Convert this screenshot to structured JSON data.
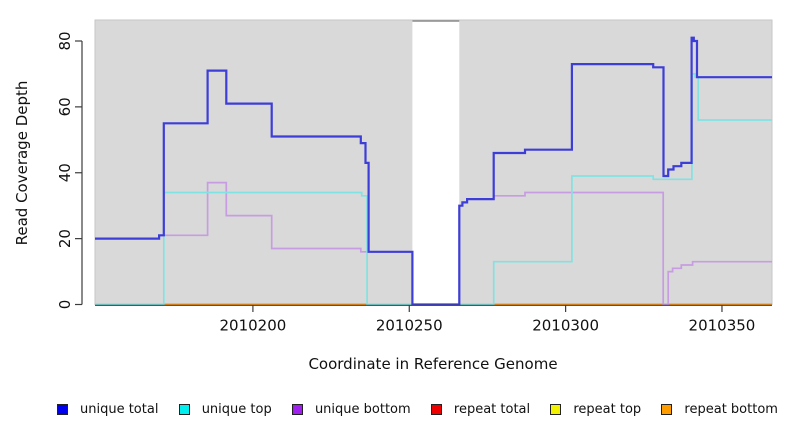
{
  "axes": {
    "xlabel": "Coordinate in Reference Genome",
    "ylabel": "Read Coverage Depth",
    "x_ticks": [
      "2010200",
      "2010250",
      "2010300",
      "2010350"
    ],
    "x_tick_values": [
      2010200,
      2010250,
      2010300,
      2010350
    ],
    "y_ticks": [
      "0",
      "20",
      "40",
      "60",
      "80"
    ],
    "y_tick_values": [
      0,
      20,
      40,
      60,
      80
    ]
  },
  "chart_data": {
    "type": "line",
    "subtype": "step",
    "title": "",
    "xlabel": "Coordinate in Reference Genome",
    "ylabel": "Read Coverage Depth",
    "x_domain": [
      2010149.5,
      2010366
    ],
    "ylim": [
      0,
      86.4
    ],
    "grid": false,
    "panel_bg": "#d9d9d9",
    "panel_border": "#c6c6c6",
    "gap_region": {
      "from": 2010251,
      "to": 2010266,
      "fill": "#ffffff",
      "top_border": "#8c8c8c"
    },
    "series": [
      {
        "name": "repeat total",
        "color": "#e00000",
        "width": 1.4,
        "points": [
          [
            2010149.5,
            0
          ]
        ]
      },
      {
        "name": "repeat top",
        "color": "#f2f200",
        "width": 1.4,
        "points": [
          [
            2010149.5,
            0
          ]
        ]
      },
      {
        "name": "repeat bottom",
        "color": "#ff9415",
        "width": 2,
        "points": [
          [
            2010149.5,
            0
          ]
        ]
      },
      {
        "name": "unique bottom",
        "color": "#c79ce2",
        "width": 1.7,
        "points": [
          [
            2010149.5,
            20
          ],
          [
            2010170,
            21
          ],
          [
            2010185.5,
            37
          ],
          [
            2010191.5,
            27
          ],
          [
            2010206,
            17
          ],
          [
            2010234.5,
            16
          ],
          [
            2010251,
            0
          ],
          [
            2010266,
            30
          ],
          [
            2010267,
            31
          ],
          [
            2010268.5,
            32
          ],
          [
            2010277,
            33
          ],
          [
            2010287,
            34
          ],
          [
            2010331.2,
            0
          ],
          [
            2010332.8,
            10
          ],
          [
            2010334.2,
            11
          ],
          [
            2010337,
            12
          ],
          [
            2010340.6,
            13
          ]
        ]
      },
      {
        "name": "unique top",
        "color": "#80e3e3",
        "width": 1.7,
        "points": [
          [
            2010149.5,
            0
          ],
          [
            2010171.5,
            34
          ],
          [
            2010234.8,
            33
          ],
          [
            2010236.5,
            0
          ],
          [
            2010277,
            13
          ],
          [
            2010302,
            39
          ],
          [
            2010328,
            38
          ],
          [
            2010340.4,
            70
          ],
          [
            2010341.4,
            69
          ],
          [
            2010342.4,
            56
          ]
        ]
      },
      {
        "name": "unique total",
        "color": "#3d3dd8",
        "width": 2.2,
        "points": [
          [
            2010149.5,
            20
          ],
          [
            2010170,
            21
          ],
          [
            2010171.5,
            55
          ],
          [
            2010185.5,
            71
          ],
          [
            2010191.5,
            61
          ],
          [
            2010206,
            51
          ],
          [
            2010234.5,
            49
          ],
          [
            2010236,
            43
          ],
          [
            2010237,
            16
          ],
          [
            2010251,
            0
          ],
          [
            2010266,
            30
          ],
          [
            2010267,
            31
          ],
          [
            2010268.5,
            32
          ],
          [
            2010277,
            46
          ],
          [
            2010287,
            47
          ],
          [
            2010302,
            73
          ],
          [
            2010328,
            72
          ],
          [
            2010331.3,
            39
          ],
          [
            2010332.8,
            41
          ],
          [
            2010334.5,
            42
          ],
          [
            2010337,
            43
          ],
          [
            2010340.3,
            81
          ],
          [
            2010341,
            80
          ],
          [
            2010342,
            69
          ]
        ]
      }
    ],
    "baseline_overlap_segments": [
      {
        "from": 2010149.5,
        "to": 2010171.5,
        "color": "#99d6a6"
      },
      {
        "from": 2010236.5,
        "to": 2010251,
        "color": "#99d6a6"
      },
      {
        "from": 2010266,
        "to": 2010277,
        "color": "#99d6a6"
      }
    ]
  },
  "legend": {
    "items": [
      {
        "label": "unique total",
        "color": "#0000ee"
      },
      {
        "label": "unique top",
        "color": "#00eeee"
      },
      {
        "label": "unique bottom",
        "color": "#a020f0"
      },
      {
        "label": "repeat total",
        "color": "#ee0000"
      },
      {
        "label": "repeat top",
        "color": "#f2f200"
      },
      {
        "label": "repeat bottom",
        "color": "#ff9d00"
      }
    ]
  }
}
